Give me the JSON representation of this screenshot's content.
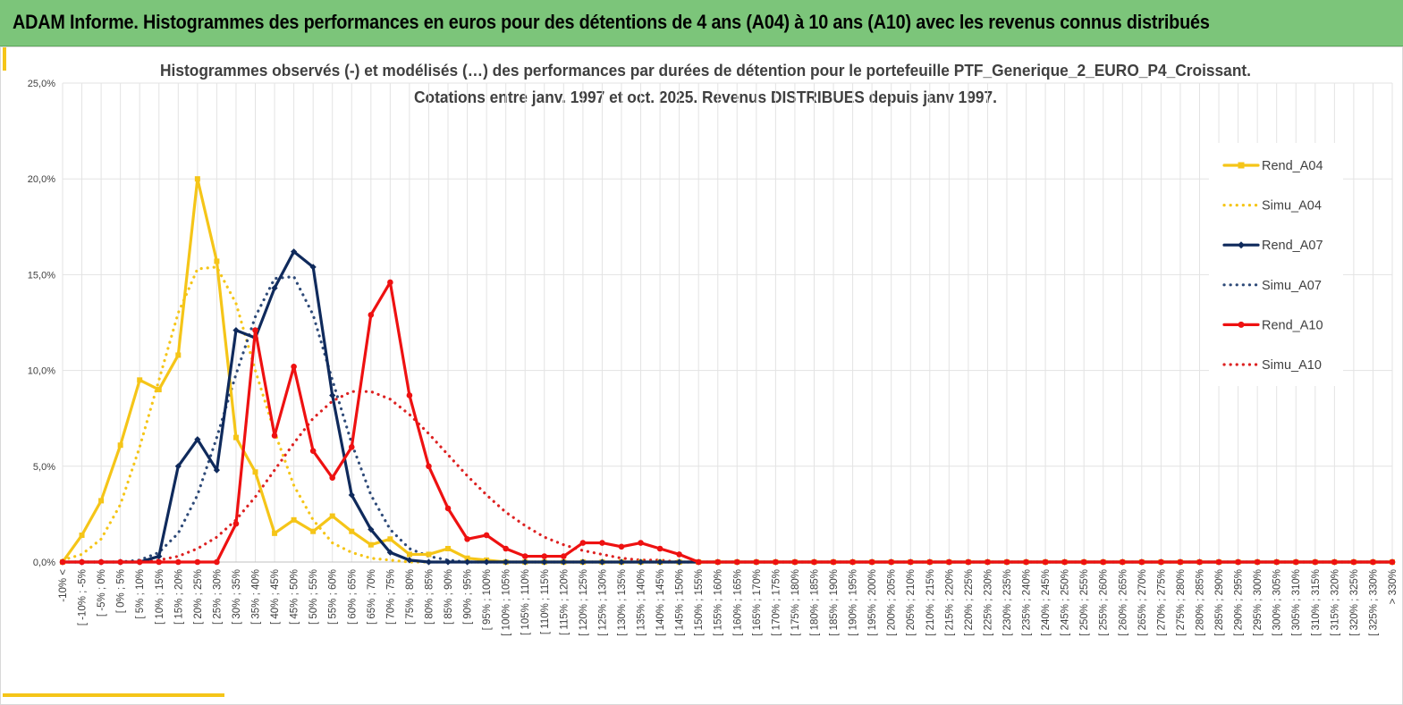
{
  "banner": {
    "title": "ADAM Informe. Histogrammes des performances en euros pour des détentions de 4 ans (A04) à 10 ans (A10) avec les revenus connus distribués",
    "background": "#7cc57a"
  },
  "accent_color": "#f5c518",
  "chart_data": {
    "type": "line",
    "title_line1": "Histogrammes observés (-) et modélisés (…) des performances par durées de détention pour le portefeuille PTF_Generique_2_EURO_P4_Croissant.",
    "title_line2": "Cotations entre janv. 1997 et oct. 2025. Revenus DISTRIBUES depuis janv 1997.",
    "ylim": [
      0,
      25
    ],
    "yticks": [
      0,
      5,
      10,
      15,
      20,
      25
    ],
    "ytick_labels": [
      "0,0%",
      "5,0%",
      "10,0%",
      "15,0%",
      "20,0%",
      "25,0%"
    ],
    "grid": true,
    "legend_position": "right",
    "categories": [
      "-10% <",
      "[ -10% ; -5%",
      "[ -5% ; 0%",
      "[ 0% ; 5%",
      "[ 5% ; 10%",
      "[ 10% ; 15%",
      "[ 15% ; 20%",
      "[ 20% ; 25%",
      "[ 25% ; 30%",
      "[ 30% ; 35%",
      "[ 35% ; 40%",
      "[ 40% ; 45%",
      "[ 45% ; 50%",
      "[ 50% ; 55%",
      "[ 55% ; 60%",
      "[ 60% ; 65%",
      "[ 65% ; 70%",
      "[ 70% ; 75%",
      "[ 75% ; 80%",
      "[ 80% ; 85%",
      "[ 85% ; 90%",
      "[ 90% ; 95%",
      "[ 95% ; 100%",
      "[ 100% ; 105%",
      "[ 105% ; 110%",
      "[ 110% ; 115%",
      "[ 115% ; 120%",
      "[ 120% ; 125%",
      "[ 125% ; 130%",
      "[ 130% ; 135%",
      "[ 135% ; 140%",
      "[ 140% ; 145%",
      "[ 145% ; 150%",
      "[ 150% ; 155%",
      "[ 155% ; 160%",
      "[ 160% ; 165%",
      "[ 165% ; 170%",
      "[ 170% ; 175%",
      "[ 175% ; 180%",
      "[ 180% ; 185%",
      "[ 185% ; 190%",
      "[ 190% ; 195%",
      "[ 195% ; 200%",
      "[ 200% ; 205%",
      "[ 205% ; 210%",
      "[ 210% ; 215%",
      "[ 215% ; 220%",
      "[ 220% ; 225%",
      "[ 225% ; 230%",
      "[ 230% ; 235%",
      "[ 235% ; 240%",
      "[ 240% ; 245%",
      "[ 245% ; 250%",
      "[ 250% ; 255%",
      "[ 255% ; 260%",
      "[ 260% ; 265%",
      "[ 265% ; 270%",
      "[ 270% ; 275%",
      "[ 275% ; 280%",
      "[ 280% ; 285%",
      "[ 285% ; 290%",
      "[ 290% ; 295%",
      "[ 295% ; 300%",
      "[ 300% ; 305%",
      "[ 305% ; 310%",
      "[ 310% ; 315%",
      "[ 315% ; 320%",
      "[ 320% ; 325%",
      "[ 325% ; 330%",
      "> 330%"
    ],
    "series": [
      {
        "name": "Rend_A04",
        "color": "#f5c518",
        "style": "solid",
        "marker": "square",
        "values": [
          0,
          1.4,
          3.2,
          6.1,
          9.5,
          9.0,
          10.8,
          20.0,
          15.7,
          6.5,
          4.7,
          1.5,
          2.2,
          1.6,
          2.4,
          1.6,
          0.9,
          1.2,
          0.4,
          0.4,
          0.7,
          0.2,
          0.1,
          0,
          0,
          0,
          0,
          0,
          0,
          0,
          0,
          0,
          0,
          0,
          0,
          0,
          0,
          0,
          0,
          0,
          0,
          0,
          0,
          0,
          0,
          0,
          0,
          0,
          0,
          0,
          0,
          0,
          0,
          0,
          0,
          0,
          0,
          0,
          0,
          0,
          0,
          0,
          0,
          0,
          0,
          0,
          0,
          0,
          0,
          0
        ]
      },
      {
        "name": "Simu_A04",
        "color": "#f5c518",
        "style": "dotted",
        "values": [
          0.1,
          0.4,
          1.2,
          3.0,
          6.0,
          9.5,
          13.0,
          15.3,
          15.4,
          13.5,
          10.0,
          6.8,
          4.0,
          2.2,
          1.0,
          0.5,
          0.2,
          0.1,
          0,
          0,
          0,
          0,
          0,
          0,
          0,
          0,
          0,
          0,
          0,
          0,
          0,
          0,
          0,
          0,
          0,
          0,
          0,
          0,
          0,
          0,
          0,
          0,
          0,
          0,
          0,
          0,
          0,
          0,
          0,
          0,
          0,
          0,
          0,
          0,
          0,
          0,
          0,
          0,
          0,
          0,
          0,
          0,
          0,
          0,
          0,
          0,
          0,
          0,
          0,
          0
        ]
      },
      {
        "name": "Rend_A07",
        "color": "#0f2a5c",
        "style": "solid",
        "marker": "diamond",
        "values": [
          0,
          0,
          0,
          0,
          0,
          0.3,
          5.0,
          6.4,
          4.8,
          12.1,
          11.7,
          14.3,
          16.2,
          15.4,
          8.7,
          3.5,
          1.7,
          0.5,
          0.1,
          0,
          0,
          0,
          0,
          0,
          0,
          0,
          0,
          0,
          0,
          0,
          0,
          0,
          0,
          0,
          0,
          0,
          0,
          0,
          0,
          0,
          0,
          0,
          0,
          0,
          0,
          0,
          0,
          0,
          0,
          0,
          0,
          0,
          0,
          0,
          0,
          0,
          0,
          0,
          0,
          0,
          0,
          0,
          0,
          0,
          0,
          0,
          0,
          0,
          0,
          0
        ]
      },
      {
        "name": "Simu_A07",
        "color": "#2e4a78",
        "style": "dotted",
        "values": [
          0,
          0,
          0,
          0,
          0.1,
          0.5,
          1.5,
          3.5,
          6.5,
          9.8,
          12.8,
          14.8,
          14.9,
          12.9,
          9.5,
          6.2,
          3.5,
          1.7,
          0.7,
          0.3,
          0.1,
          0,
          0,
          0,
          0,
          0,
          0,
          0,
          0,
          0,
          0,
          0,
          0,
          0,
          0,
          0,
          0,
          0,
          0,
          0,
          0,
          0,
          0,
          0,
          0,
          0,
          0,
          0,
          0,
          0,
          0,
          0,
          0,
          0,
          0,
          0,
          0,
          0,
          0,
          0,
          0,
          0,
          0,
          0,
          0,
          0,
          0,
          0,
          0,
          0
        ]
      },
      {
        "name": "Rend_A10",
        "color": "#ee1111",
        "style": "solid",
        "marker": "circle",
        "values": [
          0,
          0,
          0,
          0,
          0,
          0,
          0,
          0,
          0,
          2.0,
          12.1,
          6.6,
          10.2,
          5.8,
          4.4,
          6.0,
          12.9,
          14.6,
          8.7,
          5.0,
          2.8,
          1.2,
          1.4,
          0.7,
          0.3,
          0.3,
          0.3,
          1.0,
          1.0,
          0.8,
          1.0,
          0.7,
          0.4,
          0,
          0,
          0,
          0,
          0,
          0,
          0,
          0,
          0,
          0,
          0,
          0,
          0,
          0,
          0,
          0,
          0,
          0,
          0,
          0,
          0,
          0,
          0,
          0,
          0,
          0,
          0,
          0,
          0,
          0,
          0,
          0,
          0,
          0,
          0,
          0,
          0
        ]
      },
      {
        "name": "Simu_A10",
        "color": "#dd2222",
        "style": "dotted",
        "values": [
          0,
          0,
          0,
          0,
          0,
          0.1,
          0.3,
          0.7,
          1.3,
          2.2,
          3.4,
          4.8,
          6.2,
          7.5,
          8.4,
          8.9,
          8.9,
          8.5,
          7.7,
          6.7,
          5.6,
          4.5,
          3.5,
          2.6,
          1.9,
          1.3,
          0.9,
          0.6,
          0.4,
          0.2,
          0.1,
          0.1,
          0,
          0,
          0,
          0,
          0,
          0,
          0,
          0,
          0,
          0,
          0,
          0,
          0,
          0,
          0,
          0,
          0,
          0,
          0,
          0,
          0,
          0,
          0,
          0,
          0,
          0,
          0,
          0,
          0,
          0,
          0,
          0,
          0,
          0,
          0,
          0,
          0,
          0
        ]
      }
    ]
  }
}
